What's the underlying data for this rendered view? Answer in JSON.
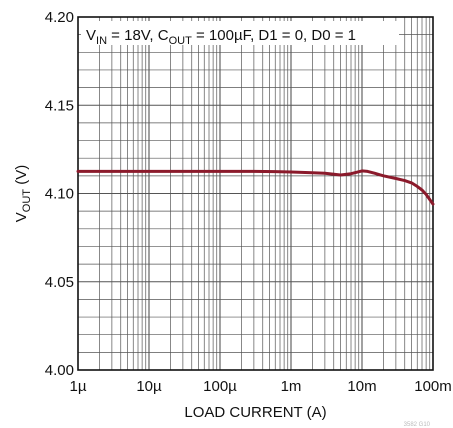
{
  "chart_data": {
    "type": "line",
    "x_scale": "log",
    "x_range": [
      1e-06,
      0.1
    ],
    "y_range": [
      4.0,
      4.2
    ],
    "grid": true,
    "x_ticks": [
      {
        "value": 1e-06,
        "label": "1µ"
      },
      {
        "value": 1e-05,
        "label": "10µ"
      },
      {
        "value": 0.0001,
        "label": "100µ"
      },
      {
        "value": 0.001,
        "label": "1m"
      },
      {
        "value": 0.01,
        "label": "10m"
      },
      {
        "value": 0.1,
        "label": "100m"
      }
    ],
    "y_ticks": [
      {
        "value": 4.0,
        "label": "4.00"
      },
      {
        "value": 4.05,
        "label": "4.05"
      },
      {
        "value": 4.1,
        "label": "4.10"
      },
      {
        "value": 4.15,
        "label": "4.15"
      },
      {
        "value": 4.2,
        "label": "4.20"
      }
    ],
    "xlabel": "LOAD CURRENT (A)",
    "ylabel": {
      "main": "V",
      "sub": "OUT",
      "unit": " (V)"
    },
    "annotation": {
      "p1_main": "V",
      "p1_sub": "IN",
      "p2": " = 18V, C",
      "p3_sub": "OUT",
      "p4": " = 100µF, D1 = 0, D0 = 1"
    },
    "figure_id": "3582 G10",
    "series": [
      {
        "color": "#8b1a2b",
        "x": [
          1e-06,
          3e-06,
          1e-05,
          3e-05,
          0.0001,
          0.0003,
          0.0006,
          0.001,
          0.002,
          0.003,
          0.005,
          0.007,
          0.01,
          0.012,
          0.015,
          0.02,
          0.03,
          0.04,
          0.05,
          0.06,
          0.07,
          0.08,
          0.1
        ],
        "y": [
          4.1125,
          4.1125,
          4.1125,
          4.1125,
          4.1125,
          4.1125,
          4.1124,
          4.1122,
          4.1118,
          4.1115,
          4.1105,
          4.1112,
          4.1128,
          4.1125,
          4.1115,
          4.11,
          4.1085,
          4.1073,
          4.106,
          4.104,
          4.102,
          4.0995,
          4.094
        ]
      }
    ]
  }
}
